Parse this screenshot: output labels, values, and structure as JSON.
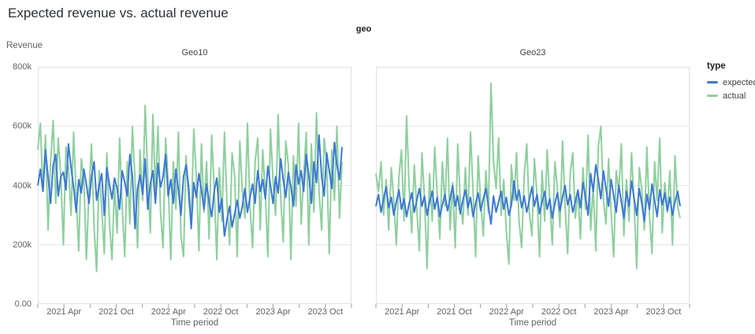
{
  "header": {
    "title": "Expected revenue vs. actual revenue"
  },
  "facet_group_label": "geo",
  "y_axis": {
    "label": "Revenue",
    "tick_labels": [
      "800k",
      "600k",
      "400k",
      "200k",
      "0.00"
    ],
    "tick_values": [
      800,
      600,
      400,
      200,
      0
    ],
    "gridline_values": [
      600,
      400,
      200
    ]
  },
  "x_axis": {
    "label": "Time period",
    "ticks": [
      {
        "label": "2021 Apr",
        "month": 3
      },
      {
        "label": "2021 Oct",
        "month": 9
      },
      {
        "label": "2022 Apr",
        "month": 15
      },
      {
        "label": "2022 Oct",
        "month": 21
      },
      {
        "label": "2023 Apr",
        "month": 27
      },
      {
        "label": "2023 Oct",
        "month": 33
      }
    ],
    "minor_tick_months": [
      0,
      3,
      6,
      9,
      12,
      15,
      18,
      21,
      24,
      27,
      30,
      33,
      36
    ],
    "total_months": 36
  },
  "legend": {
    "title": "type",
    "items": [
      {
        "label": "expected",
        "color": "#3c78d8"
      },
      {
        "label": "actual",
        "color": "#8ecf9e"
      }
    ]
  },
  "colors": {
    "expected_line": "#3c78d8",
    "actual_line": "#8ecf9e",
    "gridline": "#e6e6e6",
    "plot_border": "#e0e0e0",
    "axis_tick": "#9e9e9e",
    "tick_text": "#616161",
    "title_text": "#2b3136",
    "background": "#ffffff"
  },
  "chart_data": {
    "type": "line",
    "title": "Expected revenue vs. actual revenue",
    "facet_field": "geo",
    "y": {
      "label": "Revenue",
      "unit": "thousands",
      "ylim": [
        0,
        800
      ]
    },
    "x": {
      "label": "Time period",
      "tick_labels": [
        "2021 Apr",
        "2021 Oct",
        "2022 Apr",
        "2022 Oct",
        "2023 Apr",
        "2023 Oct"
      ]
    },
    "legend_position": "right",
    "grid": true,
    "facets": [
      {
        "name": "Geo10",
        "series": [
          {
            "name": "expected",
            "color": "#3c78d8",
            "values": [
              400,
              455,
              380,
              520,
              430,
              340,
              470,
              505,
              365,
              430,
              445,
              385,
              540,
              460,
              395,
              310,
              420,
              375,
              455,
              405,
              340,
              430,
              480,
              350,
              400,
              440,
              300,
              460,
              405,
              355,
              425,
              390,
              320,
              450,
              410,
              365,
              505,
              430,
              255,
              390,
              435,
              370,
              490,
              320,
              405,
              450,
              340,
              475,
              395,
              430,
              505,
              365,
              420,
              340,
              455,
              385,
              300,
              430,
              470,
              395,
              255,
              410,
              360,
              440,
              385,
              320,
              405,
              345,
              295,
              380,
              425,
              310,
              355,
              230,
              285,
              330,
              260,
              305,
              350,
              290,
              330,
              390,
              310,
              360,
              405,
              340,
              450,
              380,
              420,
              355,
              465,
              400,
              340,
              430,
              375,
              490,
              420,
              360,
              445,
              395,
              330,
              470,
              405,
              450,
              380,
              505,
              435,
              340,
              480,
              410,
              570,
              430,
              365,
              510,
              450,
              390,
              545,
              470,
              420,
              530
            ]
          },
          {
            "name": "actual",
            "color": "#8ecf9e",
            "values": [
              520,
              610,
              380,
              570,
              250,
              480,
              620,
              340,
              560,
              430,
              200,
              530,
              460,
              300,
              580,
              360,
              180,
              490,
              420,
              150,
              380,
              540,
              260,
              110,
              450,
              320,
              170,
              510,
              280,
              150,
              400,
              240,
              560,
              330,
              160,
              480,
              270,
              600,
              420,
              190,
              520,
              350,
              670,
              430,
              240,
              640,
              380,
              600,
              310,
              190,
              560,
              410,
              150,
              480,
              320,
              580,
              230,
              160,
              500,
              350,
              270,
              590,
              430,
              180,
              540,
              310,
              480,
              220,
              570,
              390,
              150,
              460,
              280,
              580,
              340,
              200,
              510,
              430,
              160,
              550,
              380,
              290,
              610,
              330,
              190,
              480,
              560,
              250,
              520,
              370,
              160,
              590,
              420,
              300,
              640,
              360,
              210,
              550,
              470,
              150,
              500,
              330,
              610,
              270,
              430,
              580,
              200,
              540,
              310,
              645,
              380,
              250,
              560,
              480,
              170,
              520,
              350,
              600,
              290,
              480
            ]
          }
        ]
      },
      {
        "name": "Geo23",
        "series": [
          {
            "name": "expected",
            "color": "#3c78d8",
            "values": [
              330,
              370,
              310,
              355,
              395,
              325,
              360,
              300,
              345,
              385,
              320,
              355,
              295,
              340,
              375,
              310,
              350,
              390,
              330,
              365,
              300,
              345,
              380,
              320,
              360,
              295,
              335,
              370,
              315,
              355,
              400,
              330,
              365,
              305,
              350,
              385,
              325,
              360,
              295,
              340,
              375,
              315,
              355,
              390,
              330,
              270,
              365,
              310,
              345,
              380,
              320,
              360,
              300,
              335,
              415,
              350,
              385,
              325,
              365,
              310,
              350,
              395,
              330,
              370,
              305,
              345,
              380,
              320,
              355,
              290,
              340,
              375,
              315,
              360,
              400,
              335,
              370,
              310,
              345,
              385,
              325,
              410,
              360,
              300,
              440,
              380,
              470,
              420,
              355,
              450,
              390,
              330,
              420,
              365,
              310,
              400,
              345,
              290,
              380,
              330,
              415,
              355,
              300,
              390,
              340,
              280,
              370,
              320,
              405,
              350,
              295,
              385,
              335,
              375,
              315,
              360,
              300,
              345,
              380,
              330
            ]
          },
          {
            "name": "actual",
            "color": "#8ecf9e",
            "values": [
              440,
              380,
              480,
              300,
              420,
              250,
              460,
              350,
              200,
              430,
              520,
              280,
              635,
              390,
              240,
              470,
              320,
              180,
              510,
              360,
              120,
              440,
              280,
              530,
              370,
              220,
              480,
              330,
              560,
              250,
              410,
              190,
              540,
              350,
              270,
              460,
              300,
              580,
              380,
              160,
              500,
              340,
              230,
              450,
              310,
              745,
              480,
              390,
              560,
              300,
              420,
              250,
              135,
              470,
              350,
              510,
              280,
              190,
              430,
              540,
              310,
              230,
              490,
              370,
              160,
              450,
              280,
              520,
              340,
              200,
              480,
              390,
              260,
              550,
              330,
              170,
              440,
              510,
              290,
              380,
              220,
              460,
              320,
              570,
              250,
              400,
              180,
              530,
              600,
              350,
              270,
              490,
              310,
              160,
              450,
              380,
              540,
              230,
              420,
              280,
              510,
              340,
              120,
              460,
              390,
              250,
              530,
              300,
              170,
              480,
              350,
              560,
              240,
              410,
              310,
              450,
              200,
              500,
              330,
              290
            ]
          }
        ]
      }
    ]
  }
}
